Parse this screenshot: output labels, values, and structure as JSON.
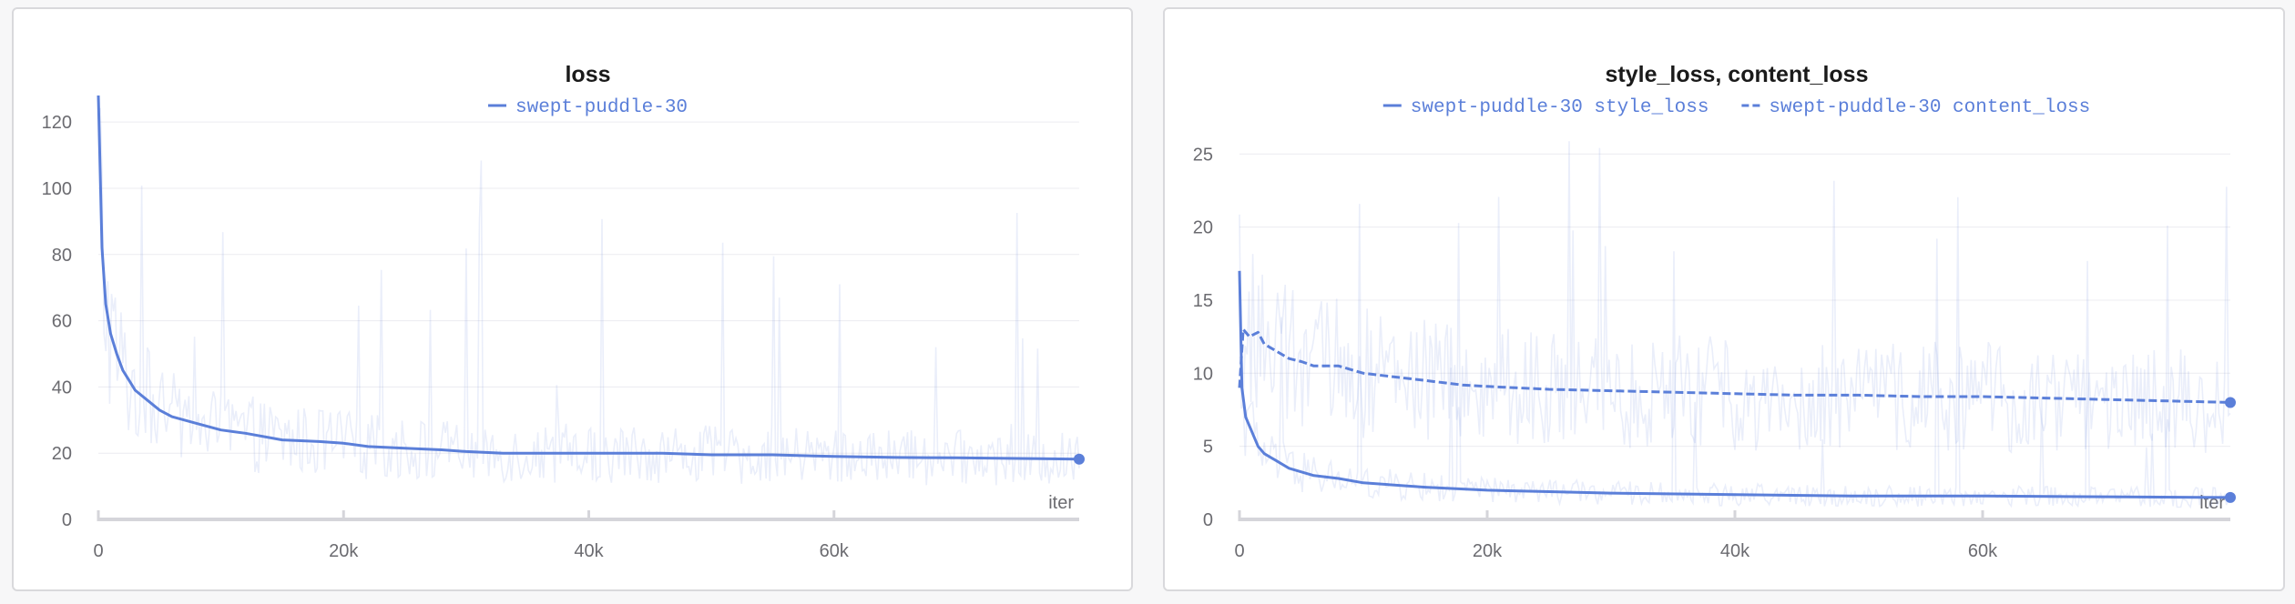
{
  "chart_data": [
    {
      "type": "line",
      "title": "loss",
      "xlabel": "iter",
      "ylabel": "",
      "xlim": [
        0,
        80000
      ],
      "ylim": [
        0,
        128
      ],
      "x_ticks": [
        0,
        20000,
        40000,
        60000
      ],
      "x_tick_labels": [
        "0",
        "20k",
        "40k",
        "60k"
      ],
      "y_ticks": [
        0,
        20,
        40,
        60,
        80,
        100,
        120
      ],
      "y_tick_labels": [
        "0",
        "20",
        "40",
        "60",
        "80",
        "100",
        "120"
      ],
      "grid": true,
      "legend_position": "top-center",
      "series": [
        {
          "name": "swept-puddle-30",
          "color": "#5b7fd9",
          "dash": "solid",
          "x": [
            0,
            300,
            600,
            1000,
            1500,
            2000,
            2500,
            3000,
            4000,
            5000,
            6000,
            8000,
            10000,
            12000,
            15000,
            18000,
            20000,
            22000,
            25000,
            28000,
            30000,
            33000,
            36000,
            40000,
            43000,
            46000,
            50000,
            55000,
            60000,
            65000,
            70000,
            75000,
            80000
          ],
          "y": [
            128,
            82,
            65,
            56,
            50,
            45,
            42,
            39,
            36,
            33,
            31,
            29,
            27,
            26,
            24,
            23.5,
            23,
            22,
            21.5,
            21,
            20.5,
            20,
            20,
            20,
            20,
            20,
            19.5,
            19.5,
            19,
            18.7,
            18.6,
            18.4,
            18.2
          ],
          "raw_range": [
            10,
            124
          ]
        }
      ]
    },
    {
      "type": "line",
      "title": "style_loss, content_loss",
      "xlabel": "iter",
      "ylabel": "",
      "xlim": [
        0,
        80000
      ],
      "ylim": [
        0,
        29
      ],
      "x_ticks": [
        0,
        20000,
        40000,
        60000
      ],
      "x_tick_labels": [
        "0",
        "20k",
        "40k",
        "60k"
      ],
      "y_ticks": [
        0,
        5,
        10,
        15,
        20,
        25
      ],
      "y_tick_labels": [
        "0",
        "5",
        "10",
        "15",
        "20",
        "25"
      ],
      "grid": true,
      "legend_position": "top-center",
      "series": [
        {
          "name": "swept-puddle-30 style_loss",
          "color": "#5b7fd9",
          "dash": "solid",
          "x": [
            0,
            200,
            500,
            1000,
            1500,
            2000,
            3000,
            4000,
            6000,
            8000,
            10000,
            15000,
            20000,
            25000,
            30000,
            40000,
            50000,
            60000,
            70000,
            80000
          ],
          "y": [
            17,
            9,
            7,
            6,
            5,
            4.5,
            4,
            3.5,
            3,
            2.8,
            2.5,
            2.2,
            2,
            1.9,
            1.8,
            1.7,
            1.6,
            1.6,
            1.55,
            1.5
          ],
          "raw_range": [
            0.3,
            28
          ]
        },
        {
          "name": "swept-puddle-30 content_loss",
          "color": "#5b7fd9",
          "dash": "dashed",
          "x": [
            0,
            300,
            800,
            1500,
            2000,
            3000,
            4000,
            5000,
            6000,
            8000,
            10000,
            12000,
            15000,
            18000,
            20000,
            25000,
            30000,
            35000,
            40000,
            45000,
            50000,
            55000,
            60000,
            65000,
            70000,
            75000,
            80000
          ],
          "y": [
            9,
            13,
            12.5,
            12.8,
            12,
            11.5,
            11,
            10.8,
            10.5,
            10.5,
            10,
            9.8,
            9.5,
            9.2,
            9.1,
            8.9,
            8.8,
            8.7,
            8.6,
            8.5,
            8.5,
            8.4,
            8.4,
            8.3,
            8.2,
            8.1,
            8
          ]
        }
      ]
    }
  ]
}
